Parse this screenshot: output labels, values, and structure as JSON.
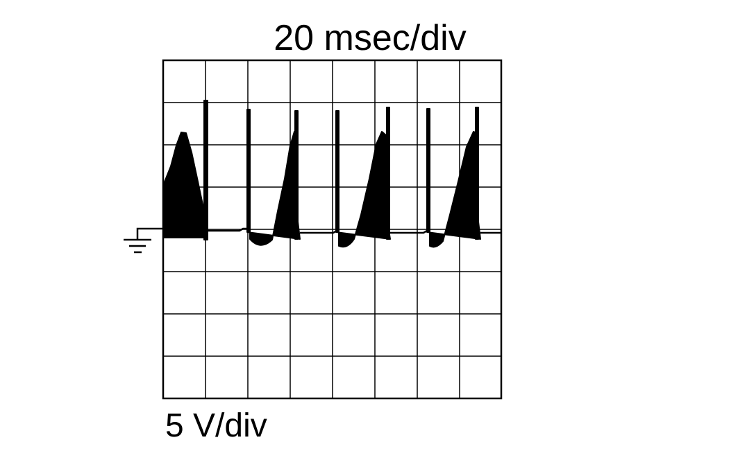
{
  "labels": {
    "time_scale": "20 msec/div",
    "voltage_scale": "5 V/div"
  }
}
